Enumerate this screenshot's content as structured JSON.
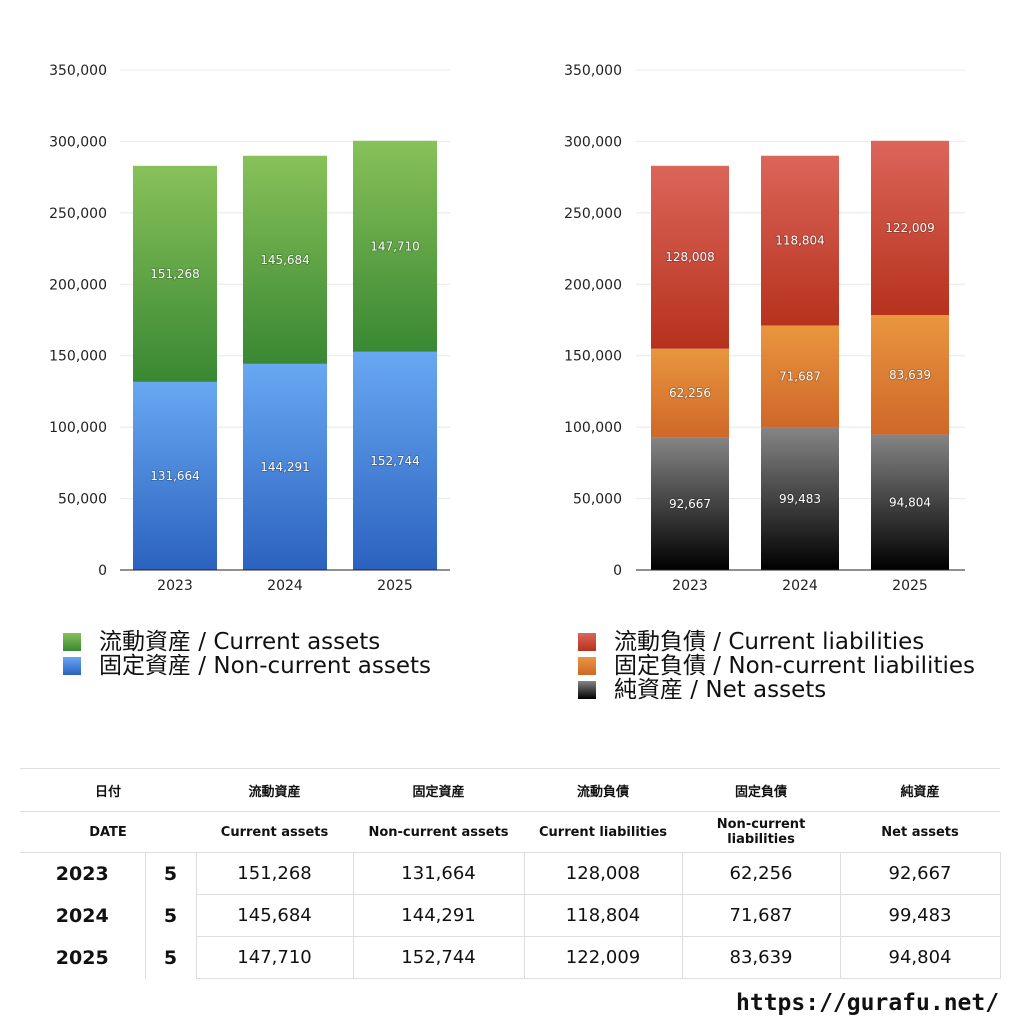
{
  "chart_data": [
    {
      "type": "bar",
      "stacked": true,
      "categories": [
        "2023",
        "2024",
        "2025"
      ],
      "ylim": [
        0,
        350000
      ],
      "yticks": [
        "0",
        "50,000",
        "100,000",
        "150,000",
        "200,000",
        "250,000",
        "300,000",
        "350,000"
      ],
      "grid": true,
      "legend_position": "bottom",
      "series": [
        {
          "name": "固定資産 / Non-current assets",
          "values": [
            131664,
            144291,
            152744
          ],
          "labels": [
            "131,664",
            "144,291",
            "152,744"
          ],
          "color_top": "#68a8f2",
          "color_bottom": "#2b62bf"
        },
        {
          "name": "流動資産 / Current assets",
          "values": [
            151268,
            145684,
            147710
          ],
          "labels": [
            "151,268",
            "145,684",
            "147,710"
          ],
          "color_top": "#88c159",
          "color_bottom": "#398833"
        }
      ]
    },
    {
      "type": "bar",
      "stacked": true,
      "categories": [
        "2023",
        "2024",
        "2025"
      ],
      "ylim": [
        0,
        350000
      ],
      "yticks": [
        "0",
        "50,000",
        "100,000",
        "150,000",
        "200,000",
        "250,000",
        "300,000",
        "350,000"
      ],
      "grid": true,
      "legend_position": "bottom",
      "series": [
        {
          "name": "純資産 / Net assets",
          "values": [
            92667,
            99483,
            94804
          ],
          "labels": [
            "92,667",
            "99,483",
            "94,804"
          ],
          "color_top": "#858585",
          "color_bottom": "#000000"
        },
        {
          "name": "固定負債 / Non-current liabilities",
          "values": [
            62256,
            71687,
            83639
          ],
          "labels": [
            "62,256",
            "71,687",
            "83,639"
          ],
          "color_top": "#e9963f",
          "color_bottom": "#cf6729"
        },
        {
          "name": "流動負債 / Current liabilities",
          "values": [
            128008,
            118804,
            122009
          ],
          "labels": [
            "128,008",
            "118,804",
            "122,009"
          ],
          "color_top": "#dc655a",
          "color_bottom": "#b6321d"
        }
      ]
    }
  ],
  "legend_left": [
    {
      "label": "流動資産 / Current assets",
      "color": "#5aa544"
    },
    {
      "label": "固定資産 / Non-current assets",
      "color": "#4a88de"
    }
  ],
  "legend_right": [
    {
      "label": "流動負債 / Current liabilities",
      "color": "#cc4a3a"
    },
    {
      "label": "固定負債 / Non-current liabilities",
      "color": "#df8236"
    },
    {
      "label": "純資産 / Net assets",
      "color": "#333333"
    }
  ],
  "table": {
    "header_jp": [
      "日付",
      "流動資産",
      "固定資産",
      "流動負債",
      "固定負債",
      "純資産"
    ],
    "header_en": [
      "DATE",
      "Current assets",
      "Non-current assets",
      "Current liabilities",
      "Non-current liabilities",
      "Net assets"
    ],
    "rows": [
      {
        "year": "2023",
        "month": "5",
        "cells": [
          "151,268",
          "131,664",
          "128,008",
          "62,256",
          "92,667"
        ]
      },
      {
        "year": "2024",
        "month": "5",
        "cells": [
          "145,684",
          "144,291",
          "118,804",
          "71,687",
          "99,483"
        ]
      },
      {
        "year": "2025",
        "month": "5",
        "cells": [
          "147,710",
          "152,744",
          "122,009",
          "83,639",
          "94,804"
        ]
      }
    ]
  },
  "footer": {
    "url": "https://gurafu.net/"
  }
}
